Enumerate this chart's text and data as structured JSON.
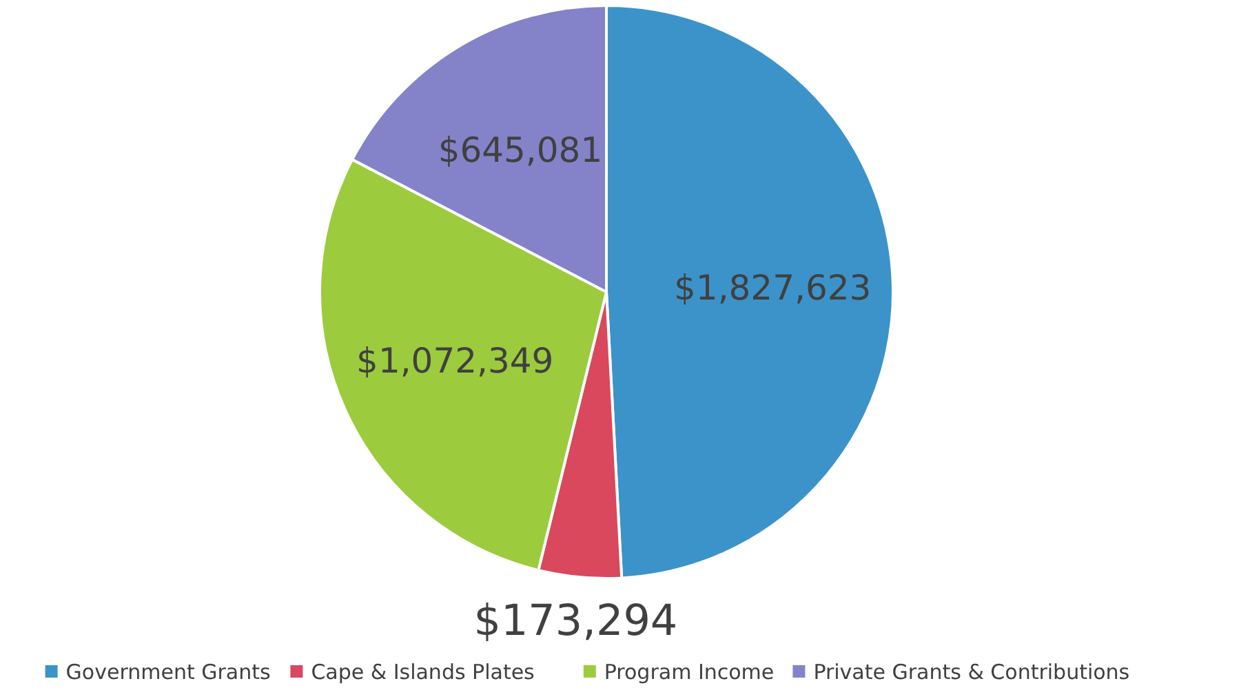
{
  "chart_data": {
    "type": "pie",
    "categories": [
      "Government Grants",
      "Cape & Islands Plates",
      "Program Income",
      "Private Grants & Contributions"
    ],
    "values": [
      1827623,
      173294,
      1072349,
      645081
    ],
    "colors": [
      "#3b93c9",
      "#d9485c",
      "#9dcb3e",
      "#8482c9"
    ],
    "value_labels": [
      "$1,827,623",
      "$173,294",
      "$1,072,349",
      "$645,081"
    ],
    "legend": "bottom"
  }
}
